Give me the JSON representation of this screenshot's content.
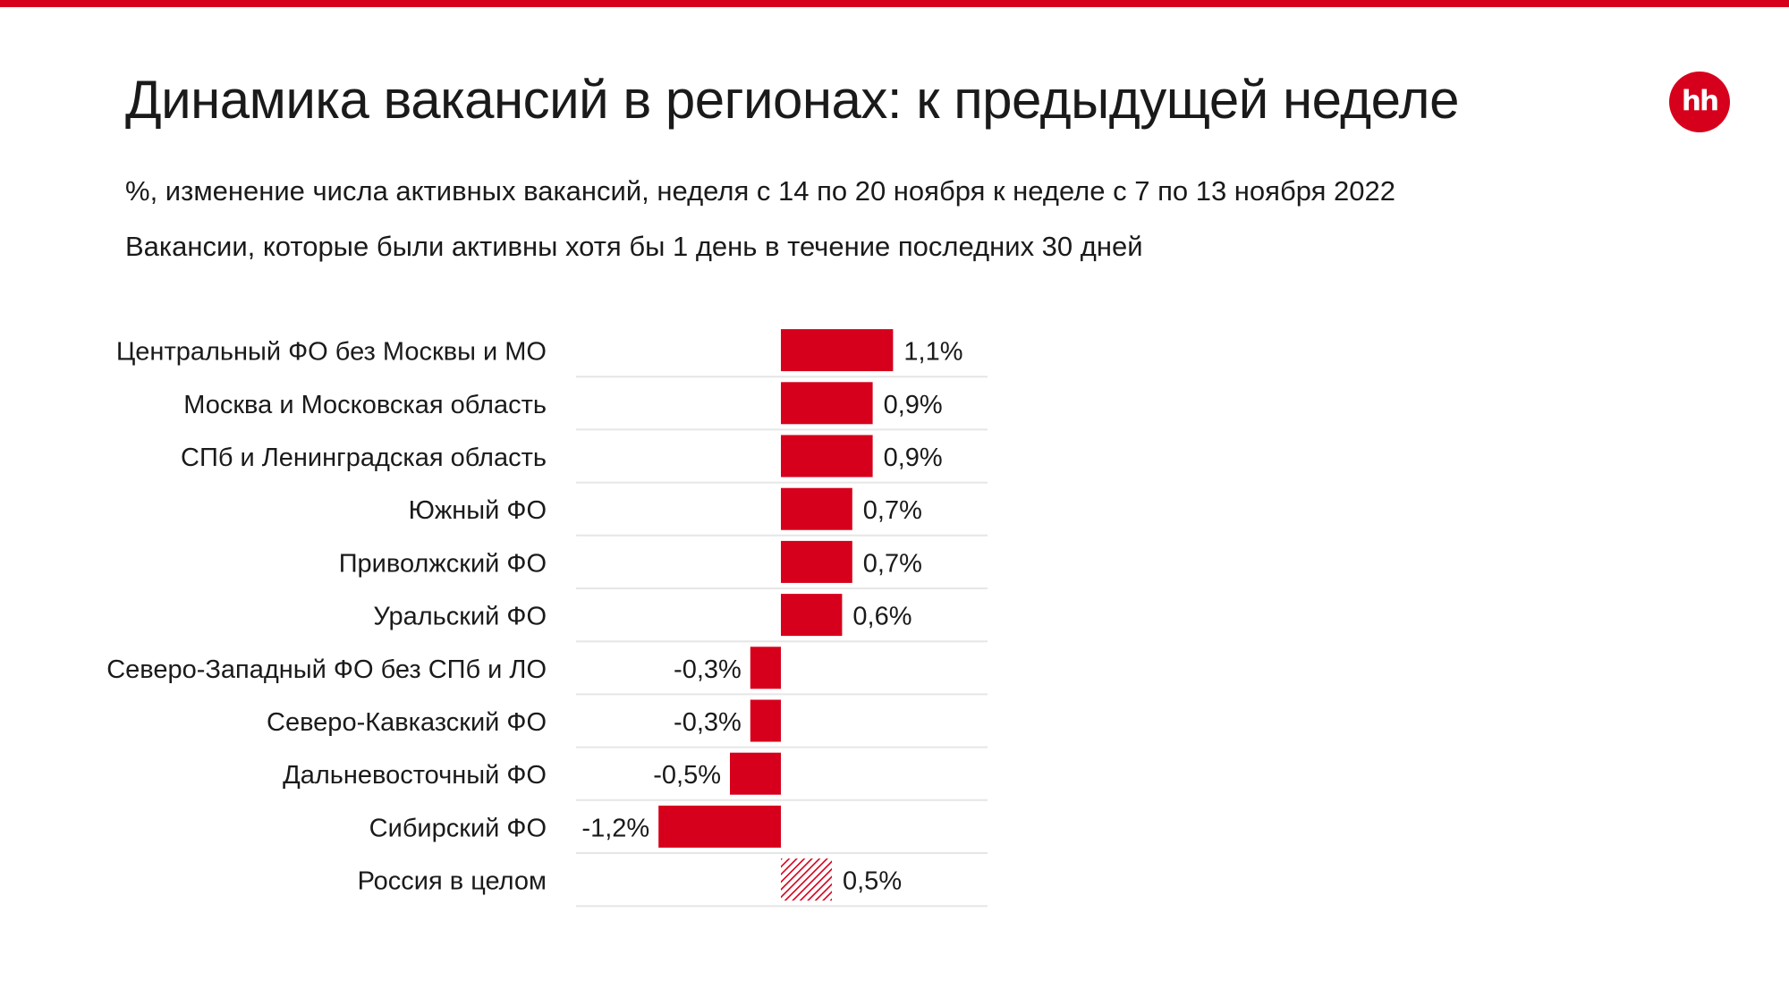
{
  "header": {
    "title": "Динамика вакансий в регионах: к предыдущей неделе",
    "subtitle_1": "%, изменение числа активных вакансий, неделя с 14 по 20 ноября к неделе с 7 по 13 ноября 2022",
    "subtitle_2": "Вакансии, которые были активны хотя бы 1 день в течение последних 30 дней",
    "logo_text": "hh"
  },
  "colors": {
    "accent": "#d6001c",
    "row_divider": "#e6e6e6"
  },
  "chart_data": {
    "type": "bar",
    "orientation": "horizontal",
    "unit": "%",
    "categories": [
      "Центральный ФО без Москвы и МО",
      "Москва и Московская область",
      "СПб и Ленинградская область",
      "Южный ФО",
      "Приволжский ФО",
      "Уральский ФО",
      "Северо-Западный ФО без СПб и ЛО",
      "Северо-Кавказский ФО",
      "Дальневосточный ФО",
      "Сибирский ФО",
      "Россия в целом"
    ],
    "values": [
      1.1,
      0.9,
      0.9,
      0.7,
      0.7,
      0.6,
      -0.3,
      -0.3,
      -0.5,
      -1.2,
      0.5
    ],
    "value_labels": [
      "1,1%",
      "0,9%",
      "0,9%",
      "0,7%",
      "0,7%",
      "0,6%",
      "-0,3%",
      "-0,3%",
      "-0,5%",
      "-1,2%",
      "0,5%"
    ],
    "hatched": [
      false,
      false,
      false,
      false,
      false,
      false,
      false,
      false,
      false,
      false,
      true
    ],
    "xlim": [
      -2.0,
      2.0
    ],
    "grid": false,
    "legend": "none"
  }
}
